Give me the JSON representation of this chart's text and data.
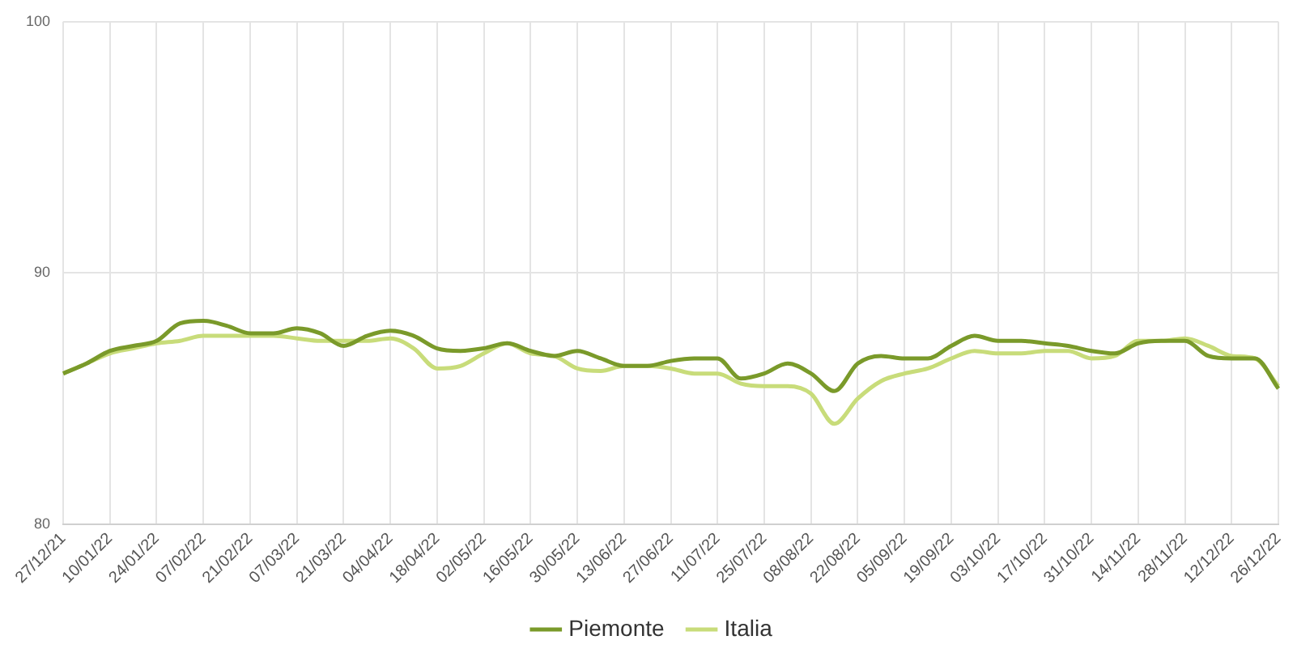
{
  "chart_data": {
    "type": "line",
    "categories": [
      "27/12/21",
      null,
      "10/01/22",
      null,
      "24/01/22",
      null,
      "07/02/22",
      null,
      "21/02/22",
      null,
      "07/03/22",
      null,
      "21/03/22",
      null,
      "04/04/22",
      null,
      "18/04/22",
      null,
      "02/05/22",
      null,
      "16/05/22",
      null,
      "30/05/22",
      null,
      "13/06/22",
      null,
      "27/06/22",
      null,
      "11/07/22",
      null,
      "25/07/22",
      null,
      "08/08/22",
      null,
      "22/08/22",
      null,
      "05/09/22",
      null,
      "19/09/22",
      null,
      "03/10/22",
      null,
      "17/10/22",
      null,
      "31/10/22",
      null,
      "14/11/22",
      null,
      "28/11/22",
      null,
      "12/12/22",
      null,
      "26/12/22"
    ],
    "series": [
      {
        "name": "Piemonte",
        "color": "#7a9a2a",
        "values": [
          86.0,
          86.4,
          86.9,
          87.1,
          87.3,
          88.0,
          88.1,
          87.9,
          87.6,
          87.6,
          87.8,
          87.6,
          87.1,
          87.5,
          87.7,
          87.5,
          87.0,
          86.9,
          87.0,
          87.2,
          86.9,
          86.7,
          86.9,
          86.6,
          86.3,
          86.3,
          86.5,
          86.6,
          86.6,
          85.8,
          86.0,
          86.4,
          86.0,
          85.3,
          86.4,
          86.7,
          86.6,
          86.6,
          87.1,
          87.5,
          87.3,
          87.3,
          87.2,
          87.1,
          86.9,
          86.8,
          87.2,
          87.3,
          87.3,
          86.7,
          86.6,
          86.6,
          85.4
        ]
      },
      {
        "name": "Italia",
        "color": "#c8dc7a",
        "values": [
          86.0,
          86.4,
          86.8,
          87.0,
          87.2,
          87.3,
          87.5,
          87.5,
          87.5,
          87.5,
          87.4,
          87.3,
          87.3,
          87.3,
          87.4,
          87.0,
          86.2,
          86.3,
          86.8,
          87.2,
          86.8,
          86.7,
          86.2,
          86.1,
          86.3,
          86.3,
          86.2,
          86.0,
          86.0,
          85.6,
          85.5,
          85.5,
          85.2,
          84.0,
          85.0,
          85.7,
          86.0,
          86.2,
          86.6,
          86.9,
          86.8,
          86.8,
          86.9,
          86.9,
          86.6,
          86.7,
          87.3,
          87.3,
          87.4,
          87.1,
          86.7,
          86.6,
          85.5
        ]
      }
    ],
    "ylim": [
      80,
      100
    ],
    "yticks": [
      80,
      90,
      100
    ],
    "grid": true,
    "legend": "bottom",
    "marker": "none",
    "line_style": "solid"
  }
}
